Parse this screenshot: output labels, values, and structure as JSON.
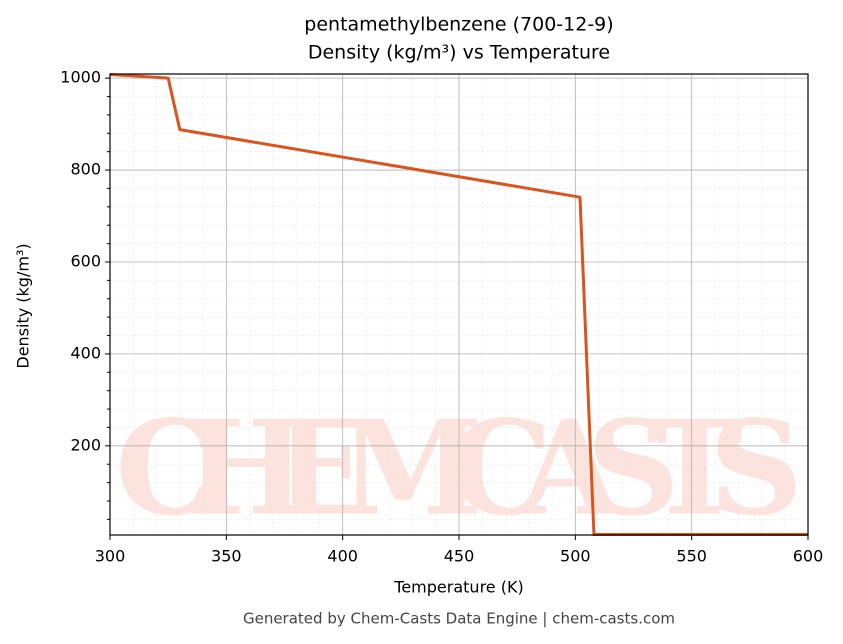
{
  "chart_data": {
    "type": "line",
    "title": "pentamethylbenzene (700-12-9)",
    "subtitle": "Density (kg/m³) vs Temperature",
    "x_label": "Temperature (K)",
    "y_label": "Density (kg/m³)",
    "watermark": "CHEMCASTS",
    "footer": "Generated by Chem-Casts Data Engine | chem-casts.com",
    "x": [
      300,
      325,
      330,
      502,
      508,
      600
    ],
    "series": [
      {
        "name": "Density",
        "color": "#d9541e",
        "values": [
          1008,
          1000,
          888,
          741,
          7,
          7
        ]
      }
    ],
    "xlim": [
      300,
      600
    ],
    "xticks": [
      300,
      350,
      400,
      450,
      500,
      550,
      600
    ],
    "ylim": [
      6,
      1009
    ],
    "yticks": [
      200,
      400,
      600,
      800,
      1000
    ],
    "grid": true,
    "minor_grid": true
  }
}
